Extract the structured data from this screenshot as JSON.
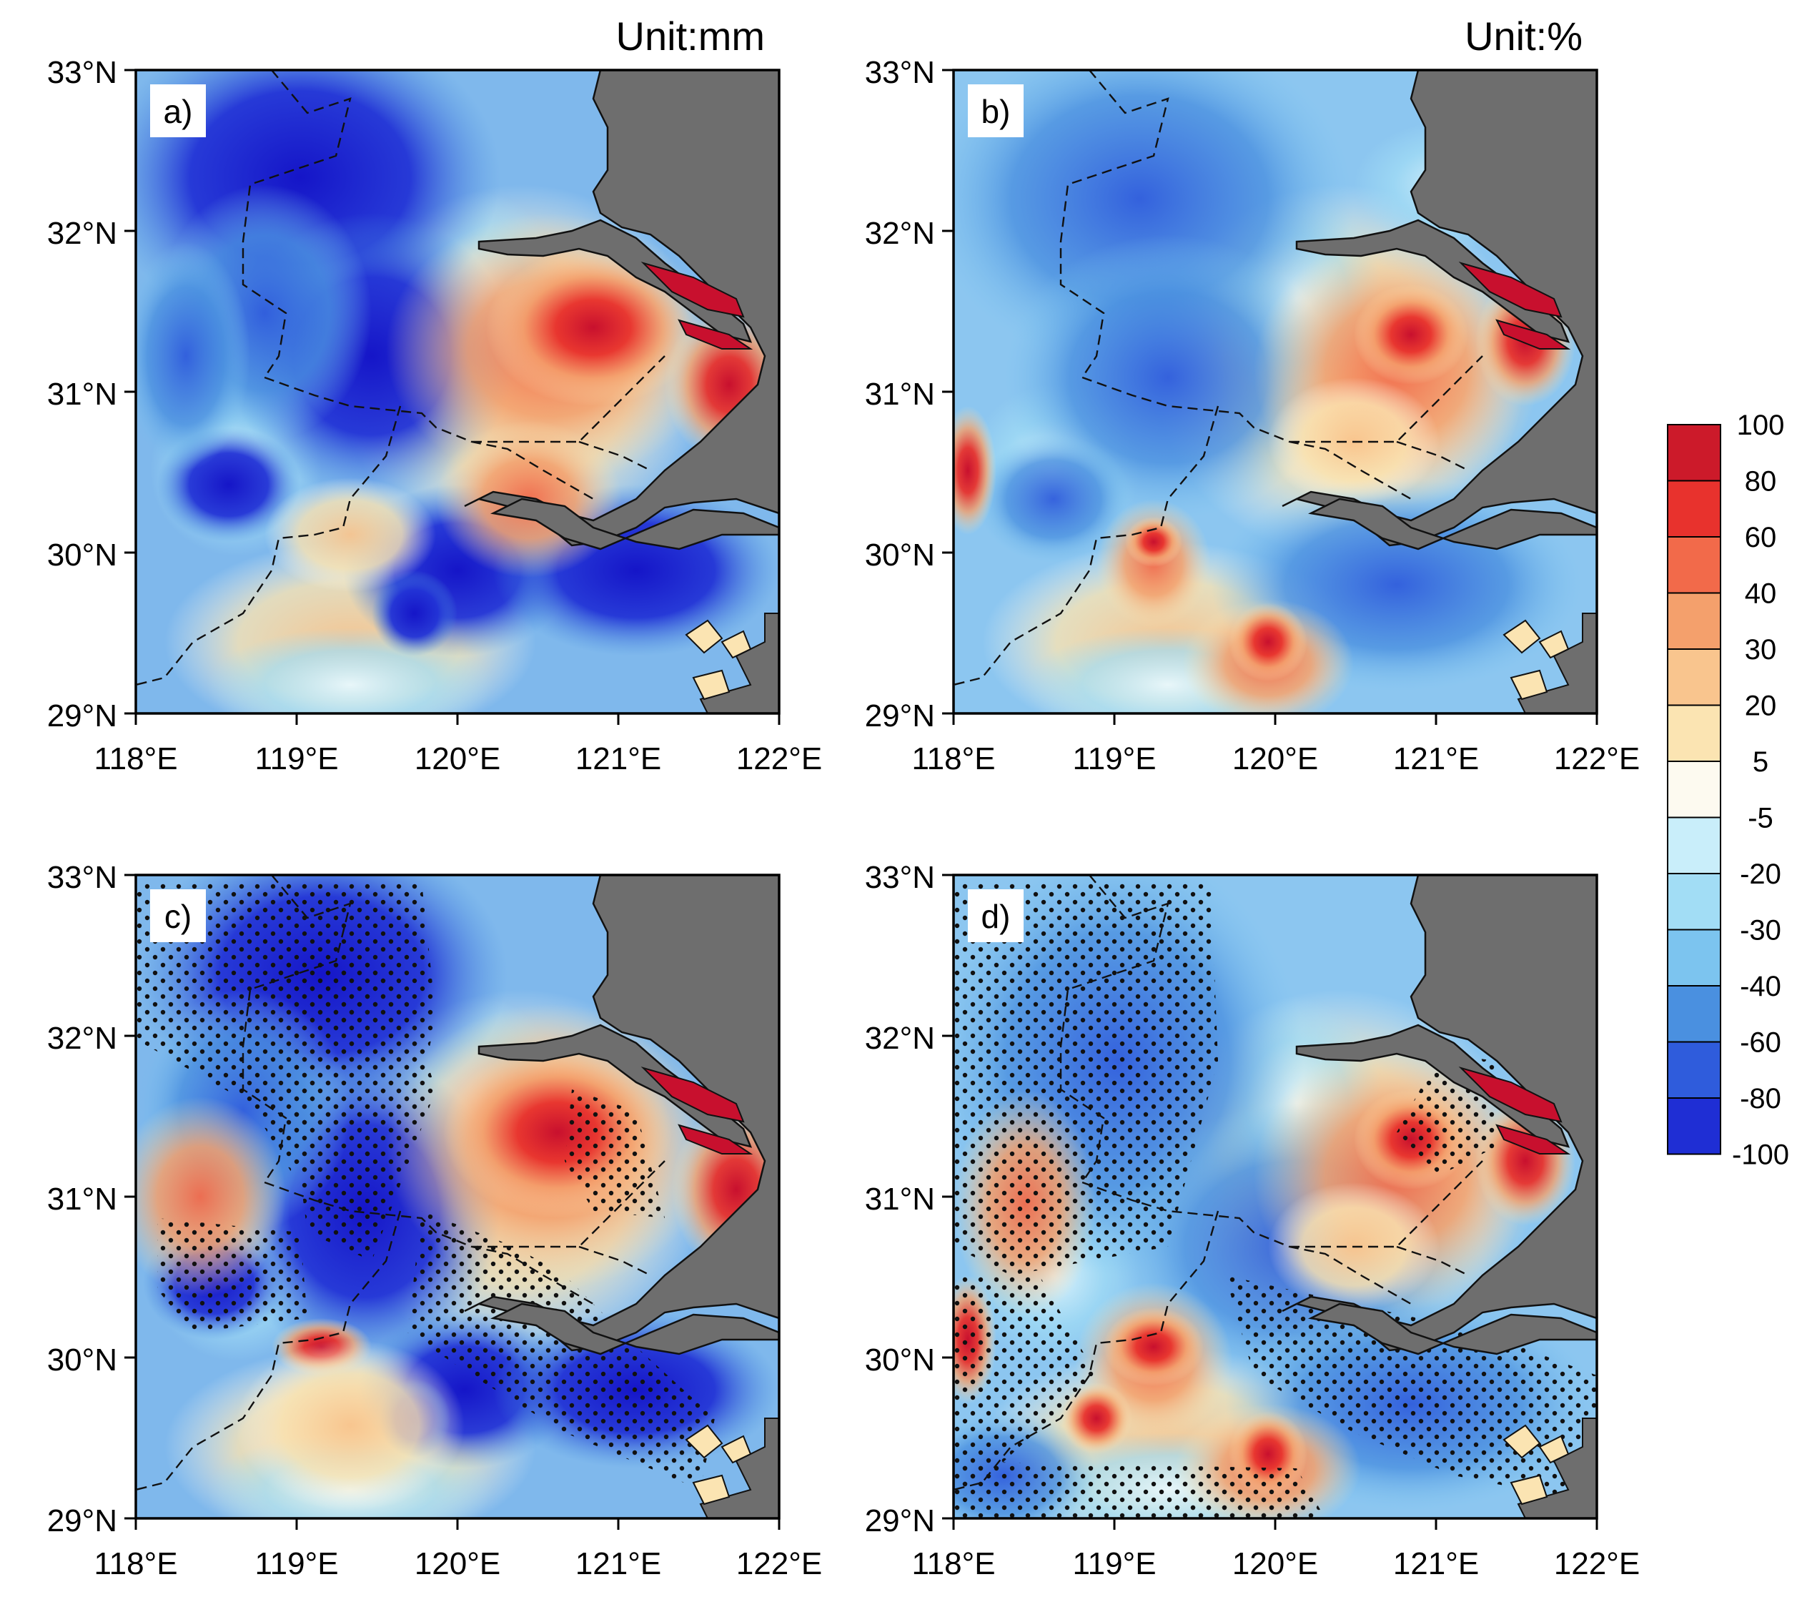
{
  "figure": {
    "panels": [
      {
        "letter": "a)",
        "unit": "Unit:mm"
      },
      {
        "letter": "b)",
        "unit": "Unit:%"
      },
      {
        "letter": "c)",
        "unit": ""
      },
      {
        "letter": "d)",
        "unit": ""
      }
    ],
    "lat_labels": [
      "33°N",
      "32°N",
      "31°N",
      "30°N",
      "29°N"
    ],
    "lon_labels": [
      "118°E",
      "119°E",
      "120°E",
      "121°E",
      "122°E"
    ],
    "colorbar": {
      "labels": [
        "100",
        "80",
        "60",
        "40",
        "30",
        "20",
        "5",
        "-5",
        "-20",
        "-30",
        "-40",
        "-60",
        "-80",
        "-100"
      ],
      "colors": [
        "#cc1a2a",
        "#e8322d",
        "#f26a4a",
        "#f4a06c",
        "#f9c58e",
        "#fbe4b2",
        "#fdfaf0",
        "#c9eefa",
        "#a2ddf5",
        "#7cc4ef",
        "#4a90e0",
        "#2f5cdc",
        "#1f2ed4"
      ]
    },
    "colors": {
      "land_gray": "#6e6e6e",
      "background_field": "#7fb8ec"
    }
  }
}
